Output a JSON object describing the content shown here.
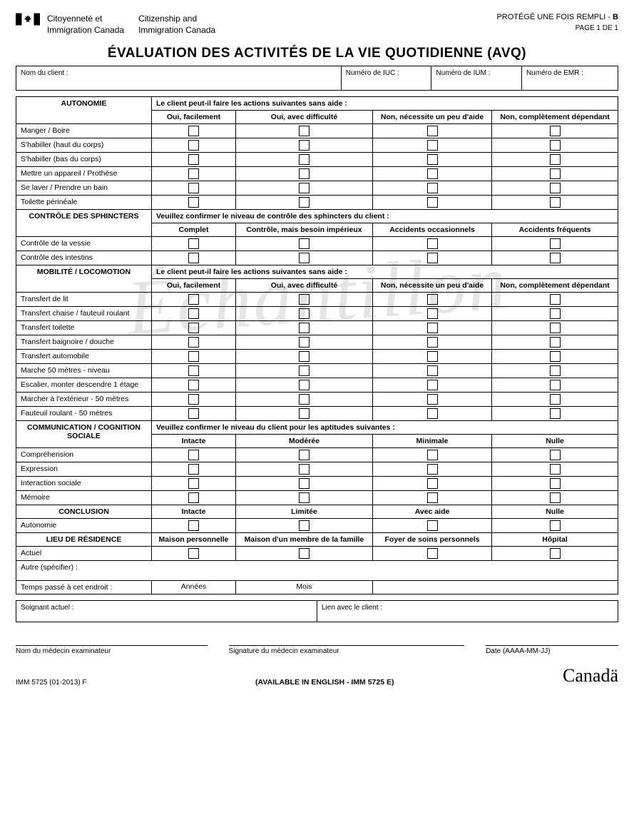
{
  "header": {
    "dept_fr_line1": "Citoyenneté et",
    "dept_fr_line2": "Immigration Canada",
    "dept_en_line1": "Citizenship and",
    "dept_en_line2": "Immigration Canada",
    "protected": "PROTÉGÉ UNE FOIS REMPLI - ",
    "protected_level": "B",
    "page": "PAGE 1 DE 1"
  },
  "title": "ÉVALUATION DES ACTIVITÉS DE LA VIE QUOTIDIENNE (AVQ)",
  "ident": {
    "client_name": "Nom du client :",
    "iuc": "Numéro de IUC :",
    "ium": "Numéro de IUM :",
    "emr": "Numéro de EMR :"
  },
  "watermark": "Échantillon",
  "sections": {
    "autonomie": {
      "title": "AUTONOMIE",
      "question": "Le client peut-il faire les actions suivantes sans aide :",
      "cols": [
        "Oui, facilement",
        "Oui, avec difficulté",
        "Non, nécessite un peu d'aide",
        "Non, complètement dépendant"
      ],
      "rows": [
        "Manger / Boire",
        "S'habiller (haut du corps)",
        "S'habiller (bas du corps)",
        "Mettre un appareil / Prothèse",
        "Se laver / Prendre un bain",
        "Toilette périnéale"
      ]
    },
    "sphincters": {
      "title": "CONTRÔLE DES SPHINCTERS",
      "question": "Veuillez confirmer le niveau de contrôle des sphincters du client :",
      "cols": [
        "Complet",
        "Contrôle, mais besoin impérieux",
        "Accidents occasionnels",
        "Accidents fréquents"
      ],
      "rows": [
        "Contrôle de la vessie",
        "Contrôle des intestins"
      ]
    },
    "mobilite": {
      "title": "MOBILITÉ / LOCOMOTION",
      "question": "Le client peut-il faire les actions suivantes sans aide :",
      "cols": [
        "Oui, facilement",
        "Oui, avec difficulté",
        "Non, nécessite un peu d'aide",
        "Non, complètement dépendant"
      ],
      "rows": [
        "Transfert de lit",
        "Transfert chaise / fauteuil roulant",
        "Transfert toilette",
        "Transfert baignoire / douche",
        "Transfert automobile",
        "Marche 50 mètres - niveau",
        "Escalier, monter descendre 1 étage",
        "Marcher à l'extérieur - 50 mètres",
        "Fauteuil roulant - 50 mètres"
      ]
    },
    "communication": {
      "title": "COMMUNICATION / COGNITION SOCIALE",
      "question": "Veuillez confirmer le niveau du client pour les aptitudes suivantes :",
      "cols": [
        "Intacte",
        "Modérée",
        "Minimale",
        "Nulle"
      ],
      "rows": [
        "Compréhension",
        "Expression",
        "Interaction sociale",
        "Mémoire"
      ]
    },
    "conclusion": {
      "title": "CONCLUSION",
      "cols": [
        "Intacte",
        "Limitée",
        "Avec aide",
        "Nulle"
      ],
      "rows": [
        "Autonomie"
      ]
    },
    "residence": {
      "title": "LIEU DE RÉSIDENCE",
      "cols": [
        "Maison personnelle",
        "Maison d'un membre de la famille",
        "Foyer de soins personnels",
        "Hôpital"
      ],
      "rows": [
        "Actuel"
      ],
      "other": "Autre (spécifier) :",
      "time_label": "Temps passé à cet endroit :",
      "years": "Années",
      "months": "Mois"
    }
  },
  "caregiver": {
    "current": "Soignant actuel :",
    "relation": "Lien avec le client :"
  },
  "signatures": {
    "physician_name": "Nom du médecin examinateur",
    "physician_sig": "Signature du médecin examinateur",
    "date": "Date (AAAA-MM-JJ)"
  },
  "footer": {
    "form_no": "IMM 5725 (01-2013) F",
    "avail": "(AVAILABLE IN ENGLISH - IMM 5725 E)",
    "wordmark": "Canadä"
  }
}
